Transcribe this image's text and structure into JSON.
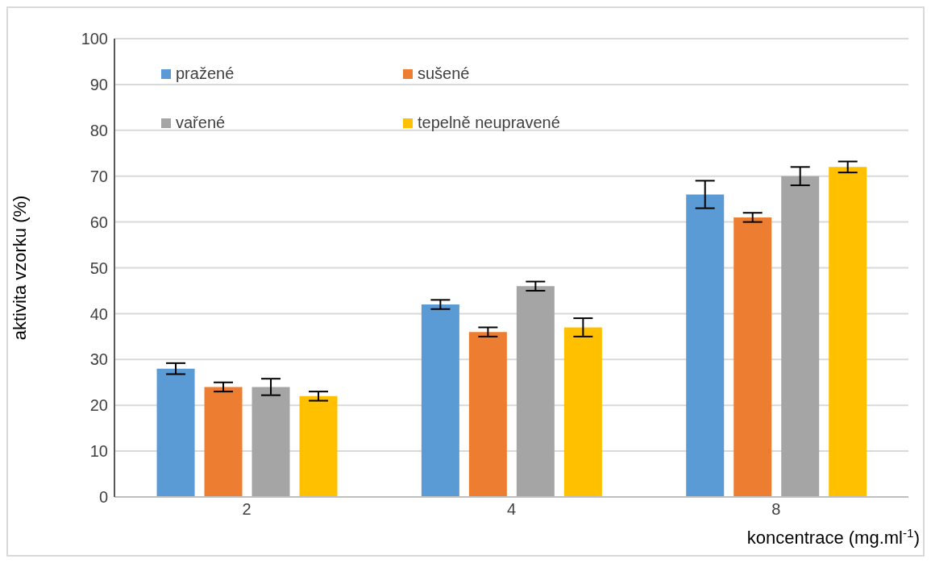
{
  "chart_data": {
    "type": "bar",
    "xlabel": "koncentrace (mg.ml$^{-1}$)",
    "ylabel": "aktivita vzorku (%)",
    "categories": [
      "2",
      "4",
      "8"
    ],
    "series": [
      {
        "name": "pražené",
        "color": "#5b9bd5",
        "values": [
          28,
          42,
          66
        ],
        "errors": [
          1.2,
          1,
          3
        ]
      },
      {
        "name": "sušené",
        "color": "#ed7d31",
        "values": [
          24,
          36,
          61
        ],
        "errors": [
          1,
          1,
          1
        ]
      },
      {
        "name": "vařené",
        "color": "#a5a5a5",
        "values": [
          24,
          46,
          70
        ],
        "errors": [
          1.8,
          1,
          2
        ]
      },
      {
        "name": "tepelně neupravené",
        "color": "#ffc000",
        "values": [
          22,
          37,
          72
        ],
        "errors": [
          1,
          2,
          1.2
        ]
      }
    ],
    "ylim": [
      0,
      100
    ],
    "yticks": [
      0,
      10,
      20,
      30,
      40,
      50,
      60,
      70,
      80,
      90,
      100
    ],
    "grid": "y",
    "legend": "top left"
  }
}
